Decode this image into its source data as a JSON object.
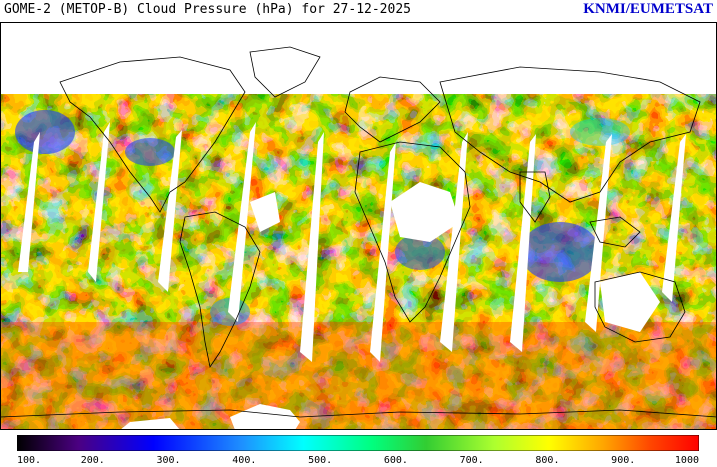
{
  "header": {
    "title": "GOME-2 (METOP-B) Cloud Pressure (hPa) for 27-12-2025",
    "credit": "KNMI/EUMETSAT"
  },
  "colorbar": {
    "ticks": [
      "100.",
      "200.",
      "300.",
      "400.",
      "500.",
      "600.",
      "700.",
      "800.",
      "900.",
      "1000"
    ],
    "min": 100,
    "max": 1000,
    "colors": [
      "#000000",
      "#4b0082",
      "#0000ff",
      "#1e90ff",
      "#00ffff",
      "#00ff7f",
      "#32cd32",
      "#adff2f",
      "#ffff00",
      "#ffa500",
      "#ff4500",
      "#ff0000"
    ]
  },
  "map": {
    "projection": "equirectangular",
    "missing_color": "#ffffff",
    "coastline_color": "#000000"
  }
}
